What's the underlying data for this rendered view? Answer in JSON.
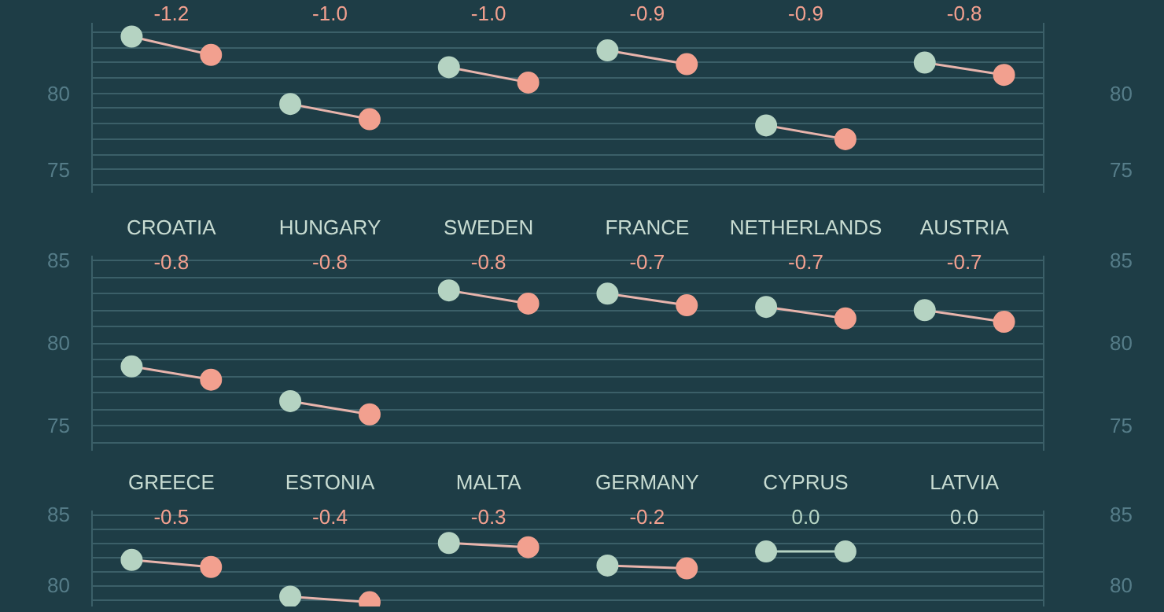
{
  "chart_data": [
    {
      "type": "line",
      "categories": [
        null,
        null,
        null,
        null,
        null,
        null,
        null,
        null,
        null,
        null,
        null,
        null
      ],
      "series": [
        {
          "color": "#e8b4ac",
          "colors": [
            "#b5d3c2",
            "#f2a08f",
            null,
            null,
            null,
            null,
            null,
            null,
            null,
            null,
            null,
            null
          ],
          "values": [
            83.7,
            82.5,
            null,
            null,
            null,
            null,
            null,
            null,
            null,
            null,
            null,
            null
          ]
        },
        {
          "color": "#e8b4ac",
          "colors": [
            null,
            null,
            "#b5d3c2",
            "#f2a08f",
            null,
            null,
            null,
            null,
            null,
            null,
            null,
            null
          ],
          "values": [
            null,
            null,
            79.3,
            78.3,
            null,
            null,
            null,
            null,
            null,
            null,
            null,
            null
          ]
        },
        {
          "color": "#e8b4ac",
          "colors": [
            null,
            null,
            null,
            null,
            "#b5d3c2",
            "#f2a08f",
            null,
            null,
            null,
            null,
            null,
            null
          ],
          "values": [
            null,
            null,
            null,
            null,
            81.7,
            80.7,
            null,
            null,
            null,
            null,
            null,
            null
          ]
        },
        {
          "color": "#e8b4ac",
          "colors": [
            null,
            null,
            null,
            null,
            null,
            null,
            "#b5d3c2",
            "#f2a08f",
            null,
            null,
            null,
            null
          ],
          "values": [
            null,
            null,
            null,
            null,
            null,
            null,
            82.8,
            81.9,
            null,
            null,
            null,
            null
          ]
        },
        {
          "color": "#e8b4ac",
          "colors": [
            null,
            null,
            null,
            null,
            null,
            null,
            null,
            null,
            "#b5d3c2",
            "#f2a08f",
            null,
            null
          ],
          "values": [
            null,
            null,
            null,
            null,
            null,
            null,
            null,
            null,
            77.9,
            77.0,
            null,
            null
          ]
        },
        {
          "color": "#e8b4ac",
          "colors": [
            null,
            null,
            null,
            null,
            null,
            null,
            null,
            null,
            null,
            null,
            "#b5d3c2",
            "#f2a08f"
          ],
          "values": [
            null,
            null,
            null,
            null,
            null,
            null,
            null,
            null,
            null,
            null,
            82.0,
            81.2
          ]
        }
      ],
      "annotations": [
        "-1.2",
        "-1.0",
        "-1.0",
        "-0.9",
        "-0.9",
        "-0.8"
      ],
      "ylim": [
        73.5,
        84.6
      ],
      "yticks": [
        {
          "value": 74,
          "label": null
        },
        75,
        {
          "value": 76,
          "label": null
        },
        {
          "value": 77,
          "label": null
        },
        {
          "value": 78,
          "label": null
        },
        {
          "value": 79,
          "label": null
        },
        80,
        {
          "value": 81,
          "label": null
        },
        {
          "value": 82,
          "label": null
        },
        {
          "value": 83,
          "label": null
        },
        {
          "value": 84,
          "label": null
        }
      ],
      "y2lim": [
        73.5,
        84.6
      ],
      "y2ticks": [
        75,
        80
      ],
      "grid": "y",
      "marker": "circle",
      "tick_labels": "y"
    },
    {
      "type": "line",
      "categories": [
        null,
        null,
        null,
        null,
        null,
        null,
        null,
        null,
        null,
        null,
        null,
        null
      ],
      "series": [
        {
          "color": "#e8b4ac",
          "colors": [
            "#b5d3c2",
            "#f2a08f",
            null,
            null,
            null,
            null,
            null,
            null,
            null,
            null,
            null,
            null
          ],
          "values": [
            78.6,
            77.8,
            null,
            null,
            null,
            null,
            null,
            null,
            null,
            null,
            null,
            null
          ]
        },
        {
          "color": "#e8b4ac",
          "colors": [
            null,
            null,
            "#b5d3c2",
            "#f2a08f",
            null,
            null,
            null,
            null,
            null,
            null,
            null,
            null
          ],
          "values": [
            null,
            null,
            76.5,
            75.7,
            null,
            null,
            null,
            null,
            null,
            null,
            null,
            null
          ]
        },
        {
          "color": "#e8b4ac",
          "colors": [
            null,
            null,
            null,
            null,
            "#b5d3c2",
            "#f2a08f",
            null,
            null,
            null,
            null,
            null,
            null
          ],
          "values": [
            null,
            null,
            null,
            null,
            83.2,
            82.4,
            null,
            null,
            null,
            null,
            null,
            null
          ]
        },
        {
          "color": "#e8b4ac",
          "colors": [
            null,
            null,
            null,
            null,
            null,
            null,
            "#b5d3c2",
            "#f2a08f",
            null,
            null,
            null,
            null
          ],
          "values": [
            null,
            null,
            null,
            null,
            null,
            null,
            83.0,
            82.3,
            null,
            null,
            null,
            null
          ]
        },
        {
          "color": "#e8b4ac",
          "colors": [
            null,
            null,
            null,
            null,
            null,
            null,
            null,
            null,
            "#b5d3c2",
            "#f2a08f",
            null,
            null
          ],
          "values": [
            null,
            null,
            null,
            null,
            null,
            null,
            null,
            null,
            82.2,
            81.5,
            null,
            null
          ]
        },
        {
          "color": "#e8b4ac",
          "colors": [
            null,
            null,
            null,
            null,
            null,
            null,
            null,
            null,
            null,
            null,
            "#b5d3c2",
            "#f2a08f"
          ],
          "values": [
            null,
            null,
            null,
            null,
            null,
            null,
            null,
            null,
            null,
            null,
            82.0,
            81.3
          ]
        }
      ],
      "annotations": [
        "CROATIA",
        "-0.8",
        "HUNGARY",
        "-0.8",
        "SWEDEN",
        "-0.8",
        "FRANCE",
        "-0.7",
        "NETHERLANDS",
        "-0.7",
        "AUSTRIA",
        "-0.7"
      ],
      "ylim": [
        73.5,
        85.3
      ],
      "yticks": [
        {
          "value": 74,
          "label": null
        },
        75,
        {
          "value": 76,
          "label": null
        },
        {
          "value": 77,
          "label": null
        },
        {
          "value": 78,
          "label": null
        },
        {
          "value": 79,
          "label": null
        },
        80,
        {
          "value": 81,
          "label": null
        },
        {
          "value": 82,
          "label": null
        },
        {
          "value": 83,
          "label": null
        },
        {
          "value": 84,
          "label": null
        },
        85
      ],
      "y2lim": [
        73.5,
        85.3
      ],
      "y2ticks": [
        75,
        80,
        85
      ],
      "grid": "y",
      "marker": "circle",
      "tick_labels": "y"
    },
    {
      "type": "line",
      "categories": [
        null,
        null,
        null,
        null,
        null,
        null,
        null,
        null,
        null,
        null,
        null,
        null
      ],
      "series": [
        {
          "color": "#e8b4ac",
          "colors": [
            "#b5d3c2",
            "#f2a08f",
            null,
            null,
            null,
            null,
            null,
            null,
            null,
            null,
            null,
            null
          ],
          "values": [
            81.8,
            81.3,
            null,
            null,
            null,
            null,
            null,
            null,
            null,
            null,
            null,
            null
          ]
        },
        {
          "color": "#e8b4ac",
          "colors": [
            null,
            null,
            "#b5d3c2",
            "#f2a08f",
            null,
            null,
            null,
            null,
            null,
            null,
            null,
            null
          ],
          "values": [
            null,
            null,
            79.2,
            78.8,
            null,
            null,
            null,
            null,
            null,
            null,
            null,
            null
          ]
        },
        {
          "color": "#e8b4ac",
          "colors": [
            null,
            null,
            null,
            null,
            "#b5d3c2",
            "#f2a08f",
            null,
            null,
            null,
            null,
            null,
            null
          ],
          "values": [
            null,
            null,
            null,
            null,
            83.0,
            82.7,
            null,
            null,
            null,
            null,
            null,
            null
          ]
        },
        {
          "color": "#e8b4ac",
          "colors": [
            null,
            null,
            null,
            null,
            null,
            null,
            "#b5d3c2",
            "#f2a08f",
            null,
            null,
            null,
            null
          ],
          "values": [
            null,
            null,
            null,
            null,
            null,
            null,
            81.4,
            81.2,
            null,
            null,
            null,
            null
          ]
        },
        {
          "color": "#b5d3c2",
          "colors": [
            null,
            null,
            null,
            null,
            null,
            null,
            null,
            null,
            "#b5d3c2",
            "#b5d3c2",
            null,
            null
          ],
          "values": [
            null,
            null,
            null,
            null,
            null,
            null,
            null,
            null,
            82.4,
            82.4,
            null,
            null
          ]
        }
      ],
      "annotations": [
        "GREECE",
        "-0.5",
        "ESTONIA",
        "-0.4",
        "MALTA",
        "-0.3",
        "GERMANY",
        "-0.2",
        "CYPRUS",
        "0.0",
        "LATVIA",
        "0.0"
      ],
      "ylim": [
        78.5,
        85.3
      ],
      "yticks": [
        {
          "value": 79,
          "label": null
        },
        80,
        {
          "value": 81,
          "label": null
        },
        {
          "value": 82,
          "label": null
        },
        {
          "value": 83,
          "label": null
        },
        {
          "value": 84,
          "label": null
        },
        85
      ],
      "y2lim": [
        78.5,
        85.3
      ],
      "y2ticks": [
        80,
        85
      ],
      "grid": "y",
      "marker": "circle",
      "tick_labels": "y"
    }
  ]
}
